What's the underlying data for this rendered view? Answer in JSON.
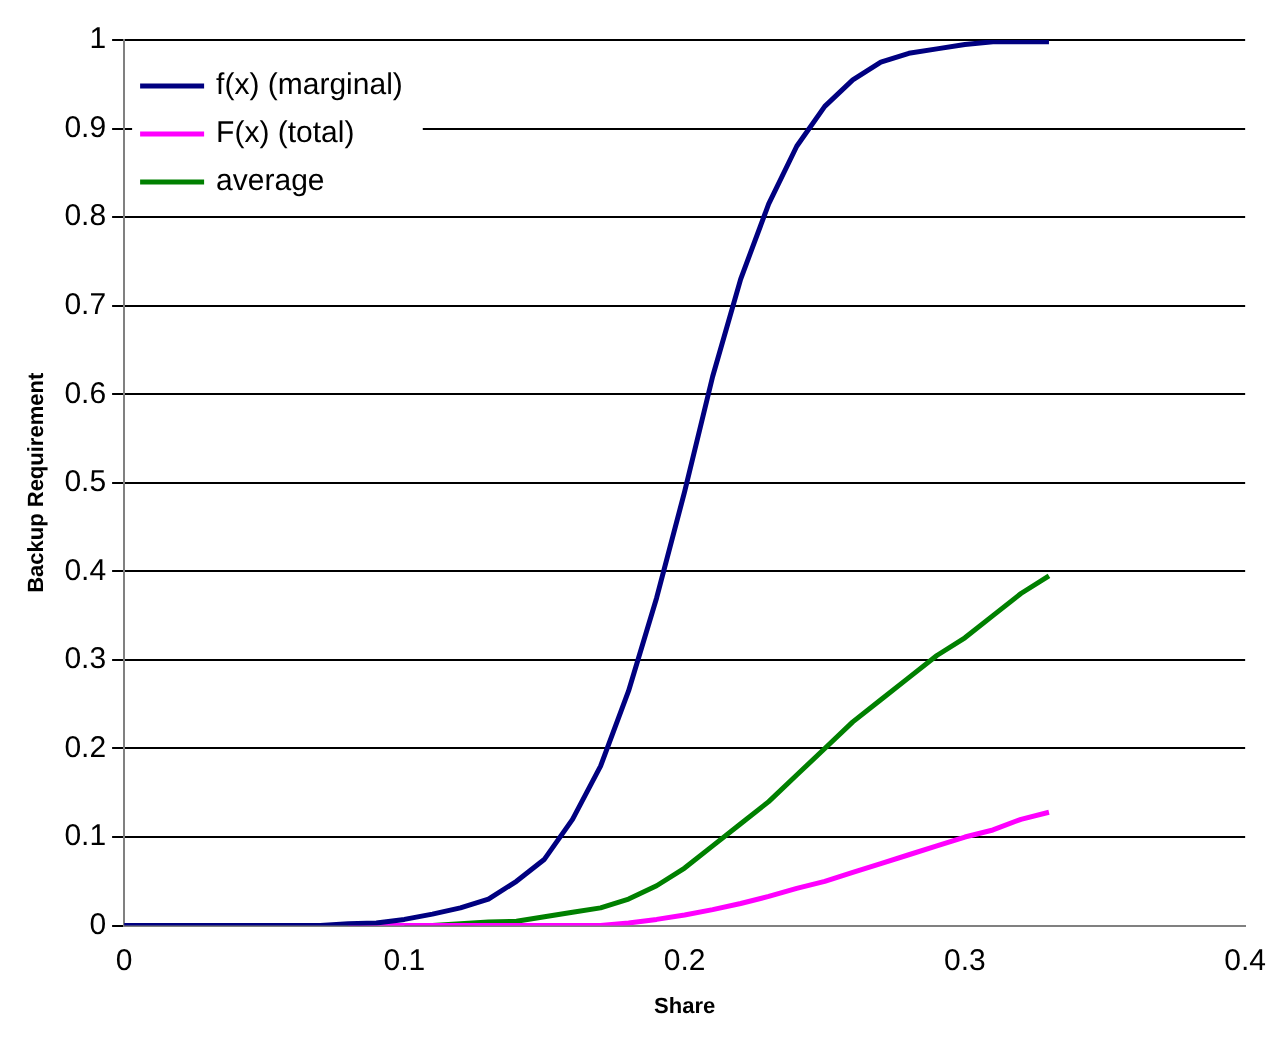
{
  "chart_data": {
    "type": "line",
    "xlabel": "Share",
    "ylabel": "Backup Requirement",
    "x": [
      0,
      0.01,
      0.02,
      0.03,
      0.04,
      0.05,
      0.06,
      0.07,
      0.08,
      0.09,
      0.1,
      0.11,
      0.12,
      0.13,
      0.14,
      0.15,
      0.16,
      0.17,
      0.18,
      0.19,
      0.2,
      0.21,
      0.22,
      0.23,
      0.24,
      0.25,
      0.26,
      0.27,
      0.28,
      0.29,
      0.3,
      0.31,
      0.32,
      0.33
    ],
    "series": [
      {
        "name": "f(x) (marginal)",
        "color": "#000080",
        "values": [
          0,
          0,
          0,
          0,
          0,
          0,
          0,
          0,
          0.002,
          0.003,
          0.007,
          0.013,
          0.02,
          0.03,
          0.05,
          0.075,
          0.12,
          0.18,
          0.265,
          0.37,
          0.49,
          0.62,
          0.73,
          0.815,
          0.88,
          0.925,
          0.955,
          0.975,
          0.985,
          0.99,
          0.995,
          0.998,
          0.998,
          0.998
        ]
      },
      {
        "name": "F(x) (total)",
        "color": "#ff00ff",
        "values": [
          null,
          null,
          null,
          null,
          null,
          null,
          null,
          null,
          0,
          0,
          0,
          0,
          0,
          0,
          0,
          0,
          0,
          0,
          0.003,
          0.007,
          0.012,
          0.018,
          0.025,
          0.033,
          0.042,
          0.05,
          0.06,
          0.07,
          0.08,
          0.09,
          0.1,
          0.108,
          0.12,
          0.128
        ]
      },
      {
        "name": "average",
        "color": "#008000",
        "values": [
          null,
          null,
          null,
          null,
          null,
          null,
          null,
          null,
          null,
          null,
          0,
          0,
          0.002,
          0.004,
          0.005,
          0.01,
          0.015,
          0.02,
          0.03,
          0.045,
          0.065,
          0.09,
          0.115,
          0.14,
          0.17,
          0.2,
          0.23,
          0.255,
          0.28,
          0.305,
          0.325,
          0.35,
          0.375,
          0.395
        ]
      }
    ],
    "xlim": [
      0,
      0.4
    ],
    "xticks": [
      0,
      0.1,
      0.2,
      0.3,
      0.4
    ],
    "ylim": [
      0,
      1
    ],
    "yticks": [
      0,
      0.1,
      0.2,
      0.3,
      0.4,
      0.5,
      0.6,
      0.7,
      0.8,
      0.9,
      1
    ],
    "grid": "y",
    "legend": "top left",
    "marker": "none",
    "line_style": "solid"
  }
}
